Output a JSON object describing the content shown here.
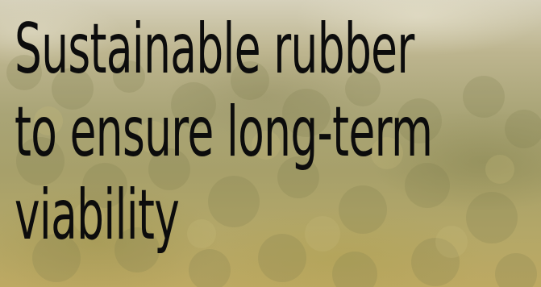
{
  "hero": {
    "headline_lines": [
      "Sustainable rubber",
      "to ensure long-term",
      "viability"
    ]
  },
  "colors": {
    "text": "#0c0c0c",
    "forest_light": "#d6d1bb",
    "forest_mid": "#a9a476",
    "forest_warm": "#bda962"
  }
}
